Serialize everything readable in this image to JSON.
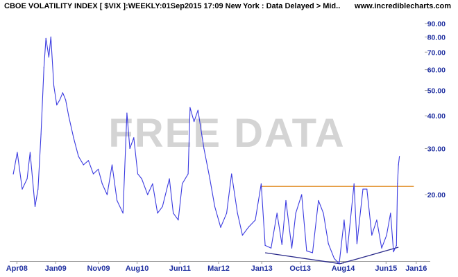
{
  "header": {
    "title": "CBOE VOLATILITY INDEX [ $VIX ]:WEEKLY:01Sep2015 17:09 New York : Data Delayed > Mid..",
    "site": "www.incrediblecharts.com"
  },
  "colors": {
    "series": "#3a3ae0",
    "resistance": "#e08a1e",
    "trendline": "#2a2a8a",
    "axis_labels": "#1f2fa0",
    "watermark": "#d4d4d4",
    "axis": "#9a9a9a"
  },
  "chart_data": {
    "type": "line",
    "title": "CBOE VOLATILITY INDEX [ $VIX ]",
    "watermark": "FREE DATA",
    "y_scale": "log",
    "ylim": [
      11.5,
      98
    ],
    "xlim": [
      "2008-03-01",
      "2016-03-01"
    ],
    "grid": false,
    "y_ticks": [
      {
        "value": 90,
        "label": "90.00"
      },
      {
        "value": 80,
        "label": "80.00"
      },
      {
        "value": 70,
        "label": "70.00"
      },
      {
        "value": 60,
        "label": "60.00"
      },
      {
        "value": 50,
        "label": "50.00"
      },
      {
        "value": 40,
        "label": "40.00"
      },
      {
        "value": 30,
        "label": "30.00"
      },
      {
        "value": 20,
        "label": "20.00"
      }
    ],
    "x_ticks": [
      {
        "date": "2008-04-01",
        "label": "Apr08"
      },
      {
        "date": "2009-01-01",
        "label": "Jan09"
      },
      {
        "date": "2009-11-01",
        "label": "Nov09"
      },
      {
        "date": "2010-08-01",
        "label": "Aug10"
      },
      {
        "date": "2011-06-01",
        "label": "Jun11"
      },
      {
        "date": "2012-03-01",
        "label": "Mar12"
      },
      {
        "date": "2013-01-01",
        "label": "Jan13"
      },
      {
        "date": "2013-10-01",
        "label": "Oct13"
      },
      {
        "date": "2014-08-01",
        "label": "Aug14"
      },
      {
        "date": "2015-06-01",
        "label": "Jun15"
      },
      {
        "date": "2016-01-01",
        "label": "Jan16"
      }
    ],
    "series": [
      {
        "points": [
          [
            "2008-03-07",
            24
          ],
          [
            "2008-04-04",
            29
          ],
          [
            "2008-05-09",
            21
          ],
          [
            "2008-06-13",
            23
          ],
          [
            "2008-07-04",
            29
          ],
          [
            "2008-08-08",
            18
          ],
          [
            "2008-08-29",
            21
          ],
          [
            "2008-09-19",
            34
          ],
          [
            "2008-10-10",
            61
          ],
          [
            "2008-10-24",
            79
          ],
          [
            "2008-11-14",
            67
          ],
          [
            "2008-11-28",
            80
          ],
          [
            "2008-12-19",
            52
          ],
          [
            "2009-01-09",
            44
          ],
          [
            "2009-01-30",
            46
          ],
          [
            "2009-02-20",
            49
          ],
          [
            "2009-03-13",
            46
          ],
          [
            "2009-04-03",
            40
          ],
          [
            "2009-05-08",
            33
          ],
          [
            "2009-06-12",
            28
          ],
          [
            "2009-07-17",
            26
          ],
          [
            "2009-08-21",
            27
          ],
          [
            "2009-09-25",
            24
          ],
          [
            "2009-10-30",
            25
          ],
          [
            "2009-11-27",
            22
          ],
          [
            "2010-01-01",
            20
          ],
          [
            "2010-02-05",
            26
          ],
          [
            "2010-03-12",
            19
          ],
          [
            "2010-04-23",
            17
          ],
          [
            "2010-05-21",
            41
          ],
          [
            "2010-06-11",
            30
          ],
          [
            "2010-07-09",
            33
          ],
          [
            "2010-08-06",
            24
          ],
          [
            "2010-09-03",
            23
          ],
          [
            "2010-10-15",
            20
          ],
          [
            "2010-11-19",
            22
          ],
          [
            "2010-12-24",
            17
          ],
          [
            "2011-01-28",
            18
          ],
          [
            "2011-03-18",
            23
          ],
          [
            "2011-04-15",
            17
          ],
          [
            "2011-05-20",
            16
          ],
          [
            "2011-06-17",
            22
          ],
          [
            "2011-07-29",
            24
          ],
          [
            "2011-08-12",
            43
          ],
          [
            "2011-09-09",
            38
          ],
          [
            "2011-10-07",
            42
          ],
          [
            "2011-11-18",
            30
          ],
          [
            "2011-12-30",
            23
          ],
          [
            "2012-02-03",
            18
          ],
          [
            "2012-03-16",
            15
          ],
          [
            "2012-04-27",
            17
          ],
          [
            "2012-06-01",
            24
          ],
          [
            "2012-07-13",
            17
          ],
          [
            "2012-08-17",
            14
          ],
          [
            "2012-09-28",
            15
          ],
          [
            "2012-11-16",
            16
          ],
          [
            "2012-12-28",
            22
          ],
          [
            "2013-01-25",
            12.8
          ],
          [
            "2013-03-08",
            12.5
          ],
          [
            "2013-04-19",
            17
          ],
          [
            "2013-05-24",
            12.9
          ],
          [
            "2013-06-21",
            19
          ],
          [
            "2013-08-02",
            12.5
          ],
          [
            "2013-08-30",
            17
          ],
          [
            "2013-10-11",
            20
          ],
          [
            "2013-11-15",
            12.2
          ],
          [
            "2013-12-27",
            12
          ],
          [
            "2014-02-07",
            19
          ],
          [
            "2014-03-14",
            17
          ],
          [
            "2014-04-18",
            13
          ],
          [
            "2014-05-30",
            11.4
          ],
          [
            "2014-07-04",
            10.9
          ],
          [
            "2014-08-08",
            16
          ],
          [
            "2014-08-29",
            12
          ],
          [
            "2014-10-17",
            22
          ],
          [
            "2014-11-07",
            13
          ],
          [
            "2014-12-19",
            21
          ],
          [
            "2015-01-16",
            21
          ],
          [
            "2015-02-20",
            14
          ],
          [
            "2015-03-27",
            16
          ],
          [
            "2015-05-01",
            12.5
          ],
          [
            "2015-06-05",
            14
          ],
          [
            "2015-07-03",
            17
          ],
          [
            "2015-07-24",
            12.1
          ],
          [
            "2015-08-14",
            12.8
          ],
          [
            "2015-08-21",
            22
          ],
          [
            "2015-08-28",
            26
          ],
          [
            "2015-09-04",
            28
          ]
        ]
      }
    ],
    "annotations": [
      {
        "type": "horizontal-line",
        "role": "resistance",
        "y": 21.5,
        "x_start": "2012-12-28",
        "x_end": "2015-12-15"
      },
      {
        "type": "trendline",
        "points": [
          [
            "2013-01-25",
            12.0
          ],
          [
            "2014-07-11",
            10.9
          ]
        ]
      },
      {
        "type": "trendline",
        "points": [
          [
            "2014-07-11",
            10.9
          ],
          [
            "2015-08-28",
            12.6
          ]
        ]
      }
    ]
  }
}
